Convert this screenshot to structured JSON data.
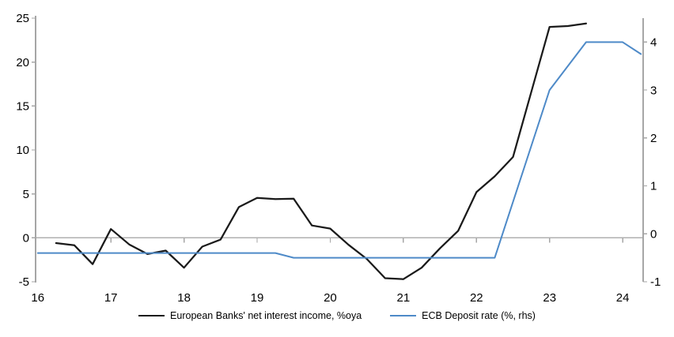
{
  "chart_data": {
    "type": "line",
    "title": "",
    "x_axis": {
      "ticks": [
        16,
        17,
        18,
        19,
        20,
        21,
        22,
        23,
        24
      ],
      "lim": [
        15.97,
        24.28
      ]
    },
    "left_axis": {
      "ticks": [
        25,
        20,
        15,
        10,
        5,
        0,
        -5
      ],
      "lim": [
        -5,
        25
      ]
    },
    "right_axis": {
      "ticks": [
        4,
        3,
        2,
        1,
        0,
        -1
      ],
      "lim": [
        -1,
        4.5
      ]
    },
    "grid": "zero-line-only",
    "legend_position": "bottom-center",
    "series": [
      {
        "name": "European Banks' net interest income, %oya",
        "axis": "left",
        "color": "#1a1a1a",
        "stroke_width": 2.25,
        "points": [
          [
            16.25,
            -0.6
          ],
          [
            16.5,
            -0.85
          ],
          [
            16.75,
            -3.0
          ],
          [
            17.0,
            1.0
          ],
          [
            17.25,
            -0.75
          ],
          [
            17.5,
            -1.85
          ],
          [
            17.75,
            -1.45
          ],
          [
            18.0,
            -3.4
          ],
          [
            18.25,
            -1.0
          ],
          [
            18.5,
            -0.2
          ],
          [
            18.75,
            3.5
          ],
          [
            19.0,
            4.55
          ],
          [
            19.25,
            4.4
          ],
          [
            19.5,
            4.45
          ],
          [
            19.75,
            1.4
          ],
          [
            20.0,
            1.05
          ],
          [
            20.25,
            -0.8
          ],
          [
            20.5,
            -2.4
          ],
          [
            20.75,
            -4.6
          ],
          [
            21.0,
            -4.7
          ],
          [
            21.25,
            -3.4
          ],
          [
            21.5,
            -1.2
          ],
          [
            21.75,
            0.8
          ],
          [
            22.0,
            5.2
          ],
          [
            22.25,
            7.0
          ],
          [
            22.5,
            9.2
          ],
          [
            22.75,
            16.6
          ],
          [
            23.0,
            24.0
          ],
          [
            23.25,
            24.1
          ],
          [
            23.5,
            24.4
          ]
        ]
      },
      {
        "name": "ECB Deposit rate (%, rhs)",
        "axis": "right",
        "color": "#4e8ac8",
        "stroke_width": 2,
        "points": [
          [
            16.0,
            -0.4
          ],
          [
            19.25,
            -0.4
          ],
          [
            19.5,
            -0.5
          ],
          [
            22.25,
            -0.5
          ],
          [
            23.0,
            3.0
          ],
          [
            23.5,
            4.0
          ],
          [
            24.0,
            4.0
          ],
          [
            24.25,
            3.75
          ]
        ]
      }
    ],
    "colors": {
      "axis": "#a6a6a6",
      "zero_line": "#b0b0b0",
      "text": "#000000",
      "background": "#ffffff"
    }
  }
}
